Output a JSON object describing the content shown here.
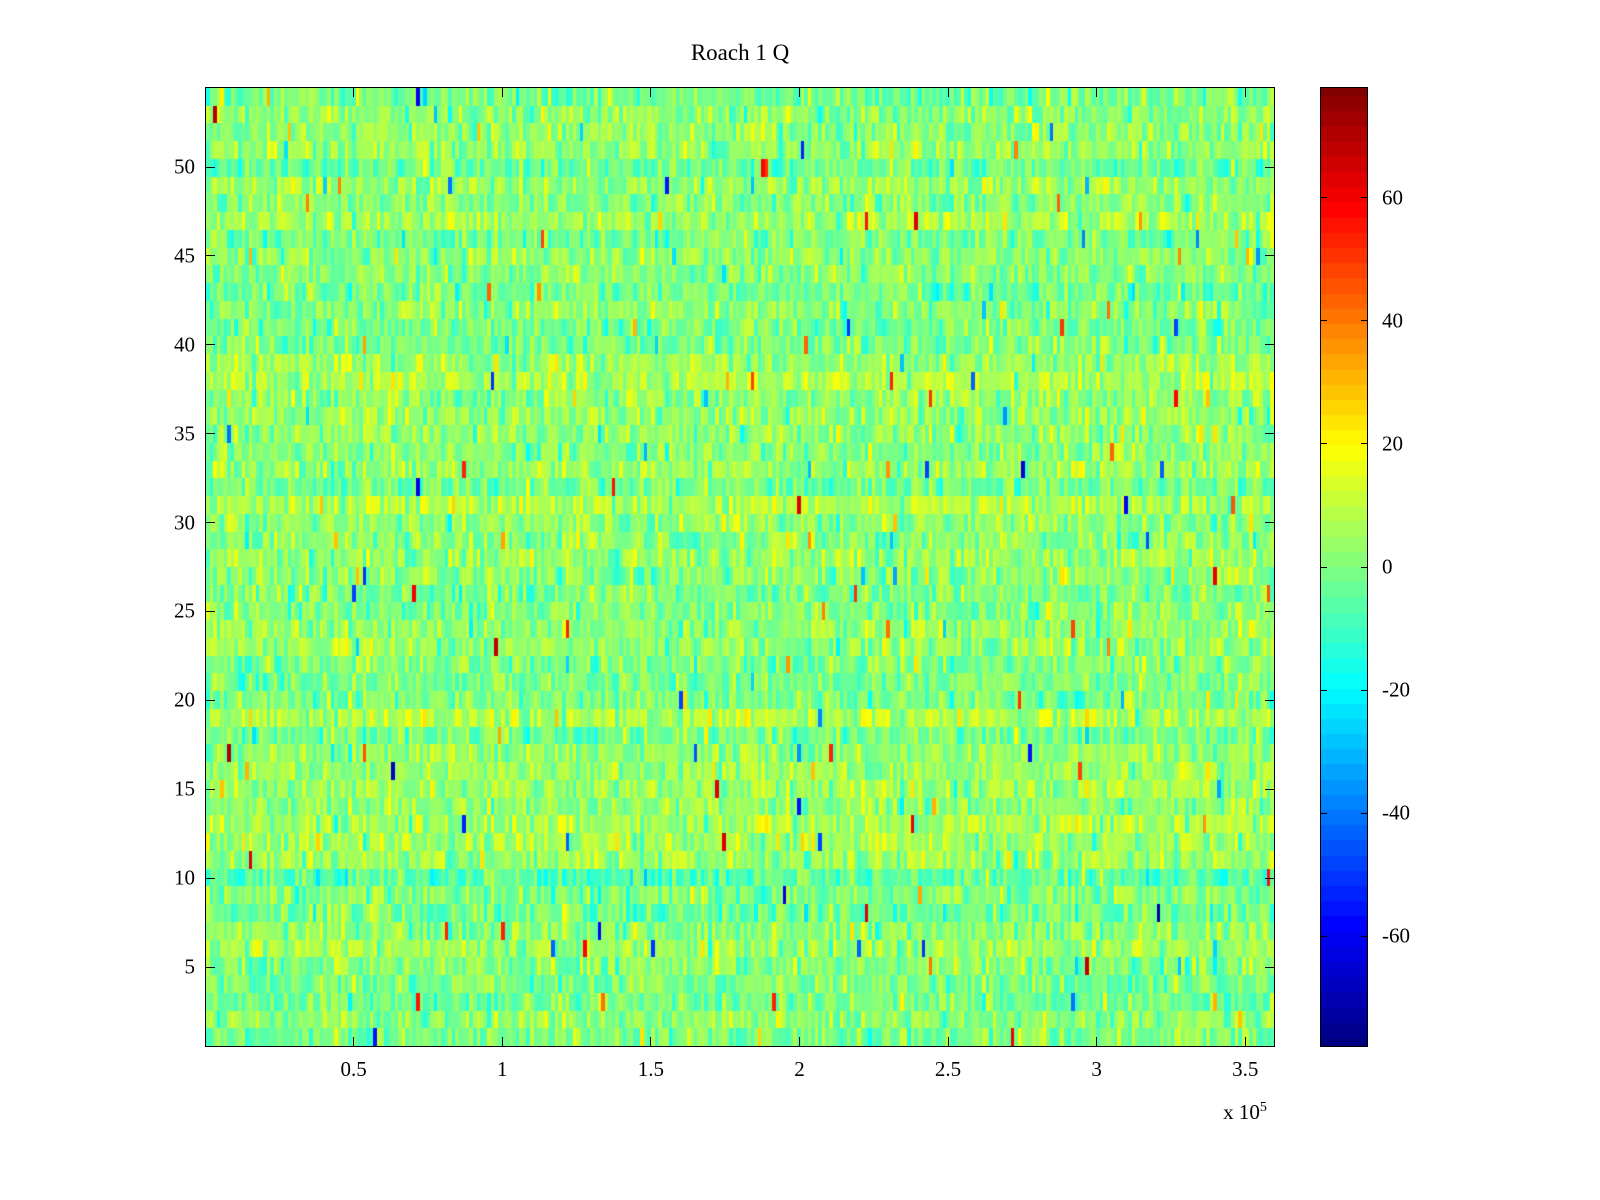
{
  "chart_data": {
    "type": "heatmap",
    "title": "Roach 1 Q",
    "colormap": "jet",
    "x_axis": {
      "min": 0,
      "max": 360000,
      "tick_values": [
        50000,
        100000,
        150000,
        200000,
        250000,
        300000,
        350000
      ],
      "tick_labels": [
        "0.5",
        "1",
        "1.5",
        "2",
        "2.5",
        "3",
        "3.5"
      ],
      "multiplier_base": "x 10",
      "multiplier_exp": "5"
    },
    "y_axis": {
      "min": 0.5,
      "max": 54.5,
      "tick_values": [
        5,
        10,
        15,
        20,
        25,
        30,
        35,
        40,
        45,
        50
      ],
      "tick_labels": [
        "5",
        "10",
        "15",
        "20",
        "25",
        "30",
        "35",
        "40",
        "45",
        "50"
      ]
    },
    "colorbar": {
      "min": -78,
      "max": 78,
      "levels": 64,
      "tick_values": [
        60,
        40,
        20,
        0,
        -20,
        -40,
        -60
      ],
      "tick_labels": [
        "60",
        "40",
        "20",
        "0",
        "-20",
        "-40",
        "-60"
      ]
    },
    "grid": {
      "rows": 54,
      "columns": 300
    },
    "noise": {
      "seed": 42,
      "mean": 2,
      "std": 7,
      "row_offset_std": 2.5,
      "outlier_probability": 0.012,
      "outlier_min": 20,
      "outlier_span": 45
    }
  }
}
